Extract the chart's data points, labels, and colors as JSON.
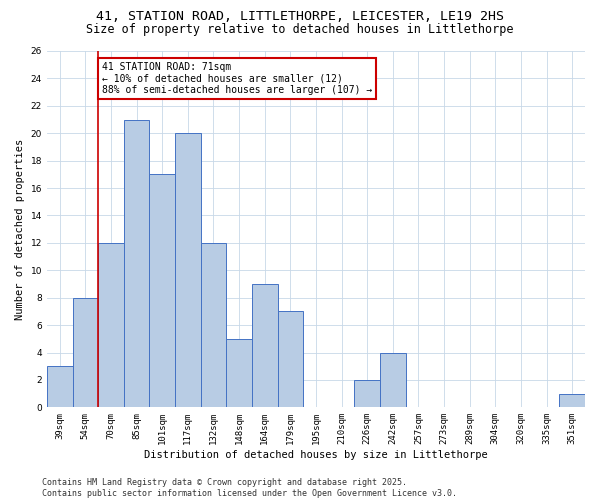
{
  "title_line1": "41, STATION ROAD, LITTLETHORPE, LEICESTER, LE19 2HS",
  "title_line2": "Size of property relative to detached houses in Littlethorpe",
  "xlabel": "Distribution of detached houses by size in Littlethorpe",
  "ylabel": "Number of detached properties",
  "categories": [
    "39sqm",
    "54sqm",
    "70sqm",
    "85sqm",
    "101sqm",
    "117sqm",
    "132sqm",
    "148sqm",
    "164sqm",
    "179sqm",
    "195sqm",
    "210sqm",
    "226sqm",
    "242sqm",
    "257sqm",
    "273sqm",
    "289sqm",
    "304sqm",
    "320sqm",
    "335sqm",
    "351sqm"
  ],
  "values": [
    3,
    8,
    12,
    21,
    17,
    20,
    12,
    5,
    9,
    7,
    0,
    0,
    2,
    4,
    0,
    0,
    0,
    0,
    0,
    0,
    1
  ],
  "bar_color": "#b8cce4",
  "bar_edge_color": "#4472c4",
  "vline_color": "#cc0000",
  "vline_index": 1.5,
  "annotation_text": "41 STATION ROAD: 71sqm\n← 10% of detached houses are smaller (12)\n88% of semi-detached houses are larger (107) →",
  "annotation_box_color": "#cc0000",
  "annotation_text_color": "#000000",
  "ylim": [
    0,
    26
  ],
  "yticks": [
    0,
    2,
    4,
    6,
    8,
    10,
    12,
    14,
    16,
    18,
    20,
    22,
    24,
    26
  ],
  "grid_color": "#c8d8e8",
  "background_color": "#ffffff",
  "footer_text": "Contains HM Land Registry data © Crown copyright and database right 2025.\nContains public sector information licensed under the Open Government Licence v3.0.",
  "title_fontsize": 9.5,
  "subtitle_fontsize": 8.5,
  "axis_label_fontsize": 7.5,
  "tick_fontsize": 6.5,
  "annotation_fontsize": 7,
  "footer_fontsize": 6
}
